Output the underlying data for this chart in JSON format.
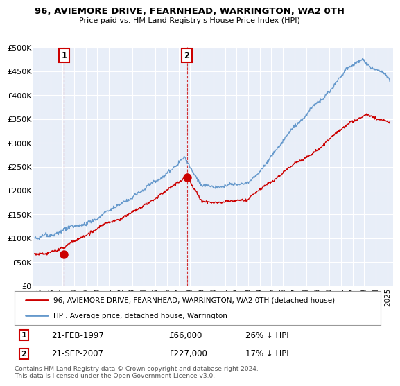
{
  "title": "96, AVIEMORE DRIVE, FEARNHEAD, WARRINGTON, WA2 0TH",
  "subtitle": "Price paid vs. HM Land Registry's House Price Index (HPI)",
  "ylim": [
    0,
    500000
  ],
  "yticks": [
    0,
    50000,
    100000,
    150000,
    200000,
    250000,
    300000,
    350000,
    400000,
    450000,
    500000
  ],
  "ytick_labels": [
    "£0",
    "£50K",
    "£100K",
    "£150K",
    "£200K",
    "£250K",
    "£300K",
    "£350K",
    "£400K",
    "£450K",
    "£500K"
  ],
  "xlim_start": 1994.5,
  "xlim_end": 2025.5,
  "sale1_year": 1997.13,
  "sale1_price": 66000,
  "sale1_label": "1",
  "sale1_date": "21-FEB-1997",
  "sale1_hpi_diff": "26% ↓ HPI",
  "sale2_year": 2007.72,
  "sale2_price": 227000,
  "sale2_label": "2",
  "sale2_date": "21-SEP-2007",
  "sale2_hpi_diff": "17% ↓ HPI",
  "property_color": "#cc0000",
  "hpi_color": "#6699cc",
  "background_color": "#e8eef8",
  "legend_property": "96, AVIEMORE DRIVE, FEARNHEAD, WARRINGTON, WA2 0TH (detached house)",
  "legend_hpi": "HPI: Average price, detached house, Warrington",
  "footer": "Contains HM Land Registry data © Crown copyright and database right 2024.\nThis data is licensed under the Open Government Licence v3.0.",
  "xtick_years": [
    1995,
    1996,
    1997,
    1998,
    1999,
    2000,
    2001,
    2002,
    2003,
    2004,
    2005,
    2006,
    2007,
    2008,
    2009,
    2010,
    2011,
    2012,
    2013,
    2014,
    2015,
    2016,
    2017,
    2018,
    2019,
    2020,
    2021,
    2022,
    2023,
    2024,
    2025
  ]
}
